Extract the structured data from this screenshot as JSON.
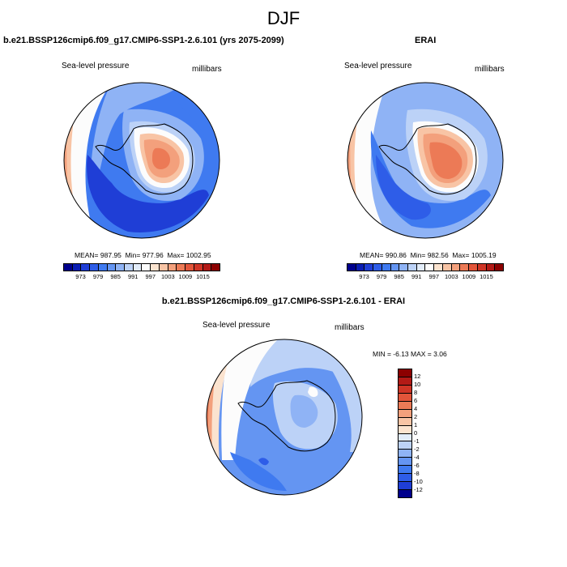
{
  "figure": {
    "title": "DJF",
    "panels": {
      "model": {
        "title": "b.e21.BSSP126cmip6.f09_g17.CMIP6-SSP1-2.6.101 (yrs 2075-2099)",
        "variable": "Sea-level pressure",
        "units": "millibars",
        "stats": {
          "mean_label": "MEAN=",
          "mean": "987.95",
          "min_label": "Min=",
          "min": "977.96",
          "max_label": "Max=",
          "max": "1002.95"
        }
      },
      "obs": {
        "title": "ERAI",
        "variable": "Sea-level pressure",
        "units": "millibars",
        "stats": {
          "mean_label": "MEAN=",
          "mean": "990.86",
          "min_label": "Min=",
          "min": "982.56",
          "max_label": "Max=",
          "max": "1005.19"
        }
      },
      "diff": {
        "title": "b.e21.BSSP126cmip6.f09_g17.CMIP6-SSP1-2.6.101 - ERAI",
        "variable": "Sea-level pressure",
        "units": "millibars",
        "stats": {
          "min_label": "MIN =",
          "min": "-6.13",
          "max_label": "MAX =",
          "max": "3.06"
        }
      }
    },
    "abs_colorbar": {
      "labels": [
        "973",
        "979",
        "985",
        "991",
        "997",
        "1003",
        "1009",
        "1015"
      ],
      "colors": [
        "#00008c",
        "#0a1db3",
        "#1f3ed6",
        "#2e5de8",
        "#3f7af0",
        "#6495f2",
        "#8fb3f5",
        "#bcd2f7",
        "#e2ecfa",
        "#fcfcfc",
        "#fbe3cf",
        "#f8c4a5",
        "#f3a07c",
        "#ec7a56",
        "#e2553a",
        "#cf3526",
        "#b31a16",
        "#8c0000"
      ]
    },
    "diff_colorbar": {
      "labels": [
        "12",
        "10",
        "8",
        "6",
        "4",
        "2",
        "1",
        "0",
        "-1",
        "-2",
        "-4",
        "-6",
        "-8",
        "-10",
        "-12"
      ],
      "colors": [
        "#8c0000",
        "#b31a16",
        "#cf3526",
        "#e2553a",
        "#ec7a56",
        "#f3a07c",
        "#f8c4a5",
        "#fbe3cf",
        "#e2ecfa",
        "#bcd2f7",
        "#8fb3f5",
        "#6495f2",
        "#3f7af0",
        "#2e5de8",
        "#1f3ed6",
        "#00008c"
      ]
    },
    "palette": {
      "deep": "#1f3ed6",
      "mid": "#3f7af0",
      "light": "#8fb3f5",
      "pale": "#bcd2f7",
      "white": "#fcfcfc",
      "peach": "#f8c4a5",
      "salmon": "#f3a07c",
      "coral": "#ec7a56",
      "coast": "#000000"
    }
  }
}
